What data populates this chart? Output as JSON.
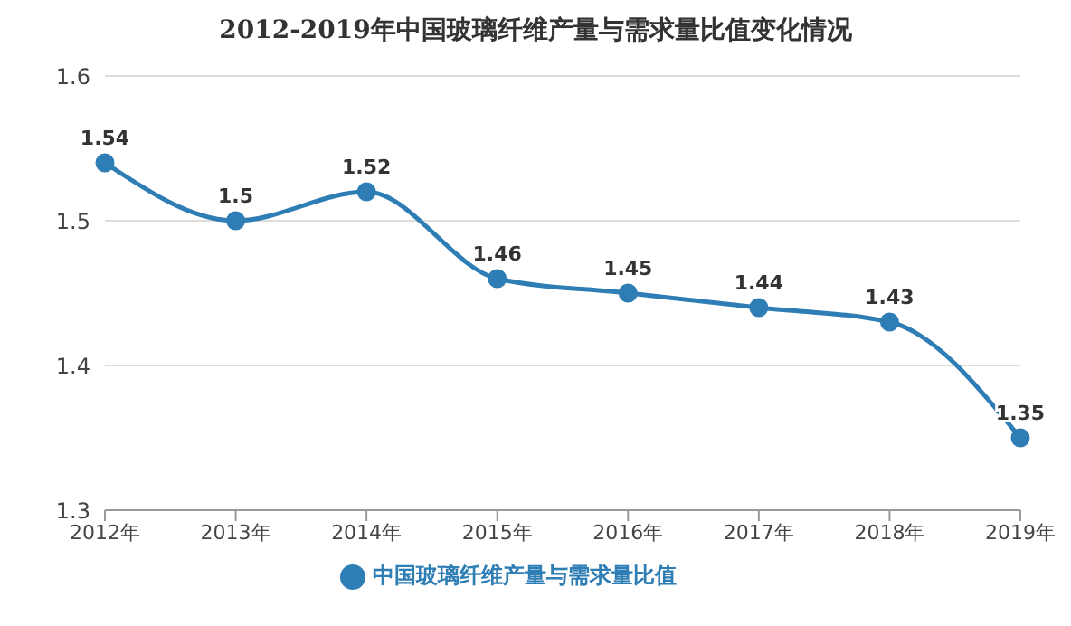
{
  "chart_data": {
    "type": "line",
    "title": "2012-2019年中国玻璃纤维产量与需求量比值变化情况",
    "categories": [
      "2012年",
      "2013年",
      "2014年",
      "2015年",
      "2016年",
      "2017年",
      "2018年",
      "2019年"
    ],
    "series": [
      {
        "name": "中国玻璃纤维产量与需求量比值",
        "color": "#2e7db5",
        "values": [
          1.54,
          1.5,
          1.52,
          1.46,
          1.45,
          1.44,
          1.43,
          1.35
        ]
      }
    ],
    "ylim": [
      1.3,
      1.6
    ],
    "yticks": [
      1.3,
      1.4,
      1.5,
      1.6
    ],
    "grid": "y",
    "legend": "bottom",
    "marker": "circle",
    "line_style": "solid",
    "data_labels": true
  }
}
